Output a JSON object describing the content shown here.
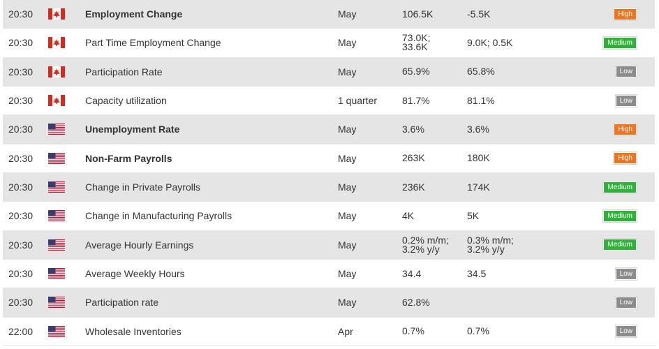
{
  "colors": {
    "high": "#f0731d",
    "medium": "#2eb237",
    "low": "#8c8c8c",
    "row_shade": "#e5e5e5"
  },
  "rows": [
    {
      "time": "20:30",
      "flag": "canada-flag-icon",
      "event": "Employment Change",
      "bold": true,
      "period": "May",
      "actual": [
        "106.5K"
      ],
      "forecast": [
        "-5.5K"
      ],
      "impact": "High"
    },
    {
      "time": "20:30",
      "flag": "canada-flag-icon",
      "event": "Part Time Employment Change",
      "bold": false,
      "period": "May",
      "actual": [
        "73.0K;",
        "33.6K"
      ],
      "forecast": [
        "9.0K; 0.5K"
      ],
      "impact": "Medium"
    },
    {
      "time": "20:30",
      "flag": "canada-flag-icon",
      "event": "Participation Rate",
      "bold": false,
      "period": "May",
      "actual": [
        "65.9%"
      ],
      "forecast": [
        "65.8%"
      ],
      "impact": "Low"
    },
    {
      "time": "20:30",
      "flag": "canada-flag-icon",
      "event": "Capacity utilization",
      "bold": false,
      "period": "1 quarter",
      "actual": [
        "81.7%"
      ],
      "forecast": [
        "81.1%"
      ],
      "impact": "Low"
    },
    {
      "time": "20:30",
      "flag": "usa-flag-icon",
      "event": "Unemployment Rate",
      "bold": true,
      "period": "May",
      "actual": [
        "3.6%"
      ],
      "forecast": [
        "3.6%"
      ],
      "impact": "High"
    },
    {
      "time": "20:30",
      "flag": "usa-flag-icon",
      "event": "Non-Farm Payrolls",
      "bold": true,
      "period": "May",
      "actual": [
        "263K"
      ],
      "forecast": [
        "180K"
      ],
      "impact": "High"
    },
    {
      "time": "20:30",
      "flag": "usa-flag-icon",
      "event": "Change in Private Payrolls",
      "bold": false,
      "period": "May",
      "actual": [
        "236K"
      ],
      "forecast": [
        "174K"
      ],
      "impact": "Medium"
    },
    {
      "time": "20:30",
      "flag": "usa-flag-icon",
      "event": "Change in Manufacturing Payrolls",
      "bold": false,
      "period": "May",
      "actual": [
        "4K"
      ],
      "forecast": [
        "5K"
      ],
      "impact": "Medium"
    },
    {
      "time": "20:30",
      "flag": "usa-flag-icon",
      "event": "Average Hourly Earnings",
      "bold": false,
      "period": "May",
      "actual": [
        "0.2% m/m;",
        "3.2% y/y"
      ],
      "forecast": [
        "0.3% m/m;",
        "3.2% y/y"
      ],
      "impact": "Medium"
    },
    {
      "time": "20:30",
      "flag": "usa-flag-icon",
      "event": "Average Weekly Hours",
      "bold": false,
      "period": "May",
      "actual": [
        "34.4"
      ],
      "forecast": [
        "34.5"
      ],
      "impact": "Low"
    },
    {
      "time": "20:30",
      "flag": "usa-flag-icon",
      "event": "Participation rate",
      "bold": false,
      "period": "May",
      "actual": [
        "62.8%"
      ],
      "forecast": [],
      "impact": "Low"
    },
    {
      "time": "22:00",
      "flag": "usa-flag-icon",
      "event": "Wholesale Inventories",
      "bold": false,
      "period": "Apr",
      "actual": [
        "0.7%"
      ],
      "forecast": [
        "0.7%"
      ],
      "impact": "Low"
    }
  ]
}
